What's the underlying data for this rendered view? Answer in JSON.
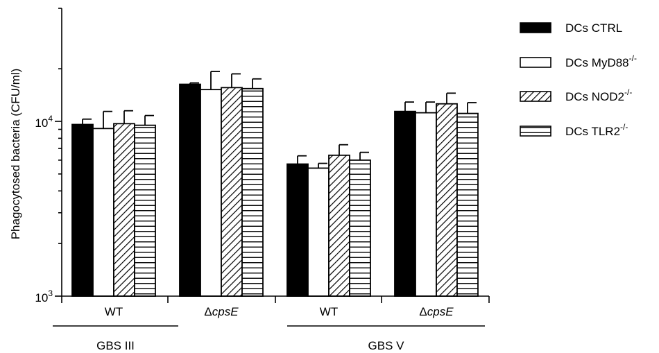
{
  "chart_data": {
    "type": "bar",
    "ylabel": "Phagocytosed bacteria (CFU/ml)",
    "yscale": "log",
    "ylim": [
      1000,
      30000
    ],
    "yticks": [
      {
        "value": 1000,
        "base": "10",
        "exp": "3"
      },
      {
        "value": 10000,
        "base": "10",
        "exp": "4"
      }
    ],
    "categories": [
      "WT",
      "ΔcpsE",
      "WT",
      "ΔcpsE"
    ],
    "category_prefix": [
      "",
      "Δ",
      "",
      "Δ"
    ],
    "category_italic": [
      "",
      "cpsE",
      "",
      "cpsE"
    ],
    "groups": [
      {
        "label": "GBS III",
        "categories": [
          0,
          1
        ]
      },
      {
        "label": "GBS V",
        "categories": [
          2,
          3
        ]
      }
    ],
    "series": [
      {
        "name": "DCs CTRL",
        "legend_base": "DCs CTRL",
        "legend_sup": "",
        "fill": "solid",
        "values": [
          9600,
          16300,
          5700,
          11400
        ],
        "errors": [
          700,
          300,
          650,
          1500
        ]
      },
      {
        "name": "DCs MyD88-/-",
        "legend_base": "DCs MyD88",
        "legend_sup": "-/-",
        "fill": "white",
        "values": [
          9100,
          15200,
          5400,
          11200
        ],
        "errors": [
          2300,
          4100,
          350,
          1700
        ]
      },
      {
        "name": "DCs NOD2-/-",
        "legend_base": "DCs NOD2",
        "legend_sup": "-/-",
        "fill": "diagonal",
        "values": [
          9700,
          15600,
          6400,
          12600
        ],
        "errors": [
          1800,
          3100,
          950,
          1900
        ]
      },
      {
        "name": "DCs TLR2-/-",
        "legend_base": "DCs TLR2",
        "legend_sup": "-/-",
        "fill": "horizontal",
        "values": [
          9500,
          15400,
          6000,
          11100
        ],
        "errors": [
          1300,
          2100,
          650,
          1700
        ]
      }
    ],
    "legend_position": "right",
    "grid": false,
    "colors": {
      "solid": "#000000",
      "outline": "#000000",
      "background": "#ffffff"
    }
  }
}
